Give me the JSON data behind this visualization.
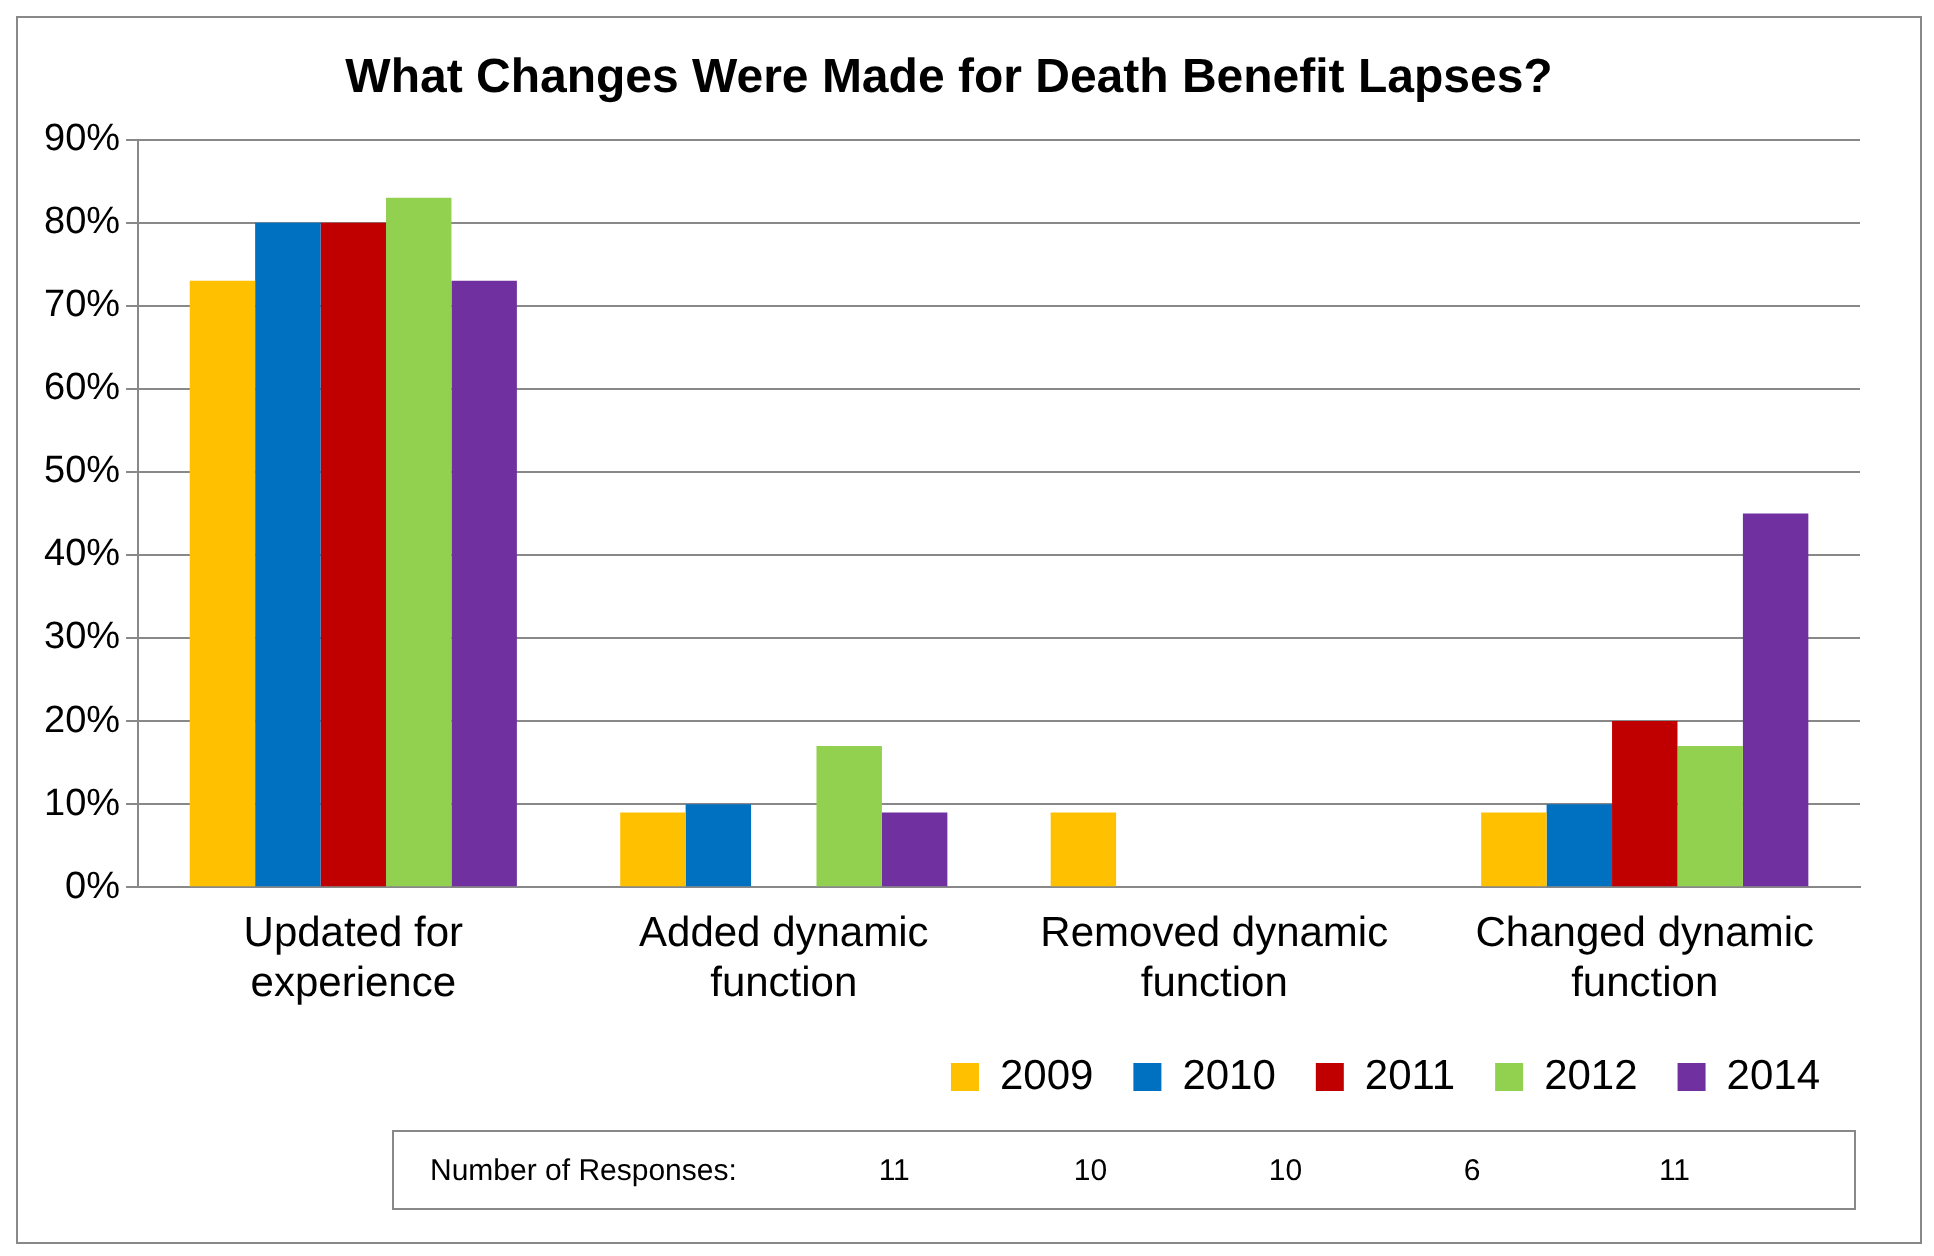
{
  "chart_data": {
    "type": "bar",
    "title": "What Changes Were Made for Death Benefit Lapses?",
    "categories": [
      "Updated for experience",
      "Added dynamic function",
      "Removed dynamic function",
      "Changed dynamic function"
    ],
    "series": [
      {
        "name": "2009",
        "color": "#ffc000",
        "values": [
          73,
          9,
          9,
          9
        ]
      },
      {
        "name": "2010",
        "color": "#0070c0",
        "values": [
          80,
          10,
          0,
          10
        ]
      },
      {
        "name": "2011",
        "color": "#c00000",
        "values": [
          80,
          0,
          0,
          20
        ]
      },
      {
        "name": "2012",
        "color": "#92d050",
        "values": [
          83,
          17,
          0,
          17
        ]
      },
      {
        "name": "2014",
        "color": "#7030a0",
        "values": [
          73,
          9,
          0,
          45
        ]
      }
    ],
    "ylim": [
      0,
      90
    ],
    "yticks": [
      {
        "value": 0,
        "label": "0%"
      },
      {
        "value": 10,
        "label": "10%"
      },
      {
        "value": 20,
        "label": "20%"
      },
      {
        "value": 30,
        "label": "30%"
      },
      {
        "value": 40,
        "label": "40%"
      },
      {
        "value": 50,
        "label": "50%"
      },
      {
        "value": 60,
        "label": "60%"
      },
      {
        "value": 70,
        "label": "70%"
      },
      {
        "value": 80,
        "label": "80%"
      },
      {
        "value": 90,
        "label": "90%"
      }
    ],
    "grid": "y",
    "legend": "bottom",
    "annotations": [
      "Number of Responses:",
      "11",
      "10",
      "10",
      "6",
      "11"
    ]
  }
}
